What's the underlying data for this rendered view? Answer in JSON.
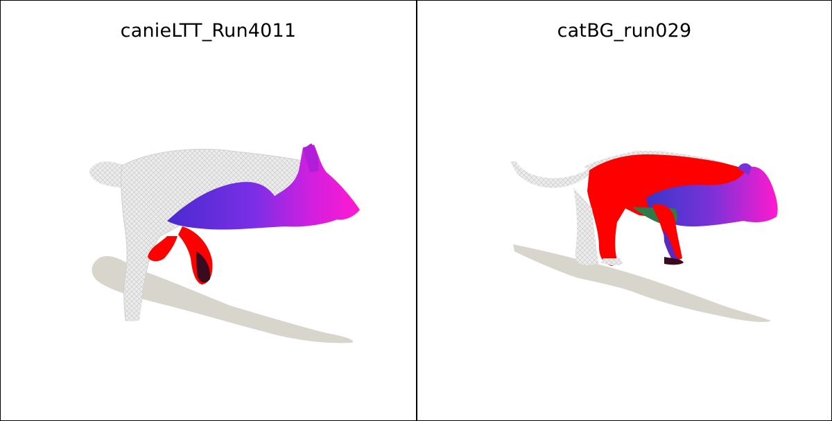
{
  "panels": [
    {
      "title": "canieLTT_Run4011"
    },
    {
      "title": "catBG_run029"
    }
  ],
  "colors": {
    "mesh": "#e6e6e6",
    "mesh_line": "#bdbdbd",
    "shadow": "#d8d5cc",
    "magenta": "#ff1ad9",
    "purple": "#6a2fe0",
    "red": "#ff0000",
    "dark": "#3a0a1e",
    "green": "#2f7a4a",
    "border": "#000000"
  }
}
